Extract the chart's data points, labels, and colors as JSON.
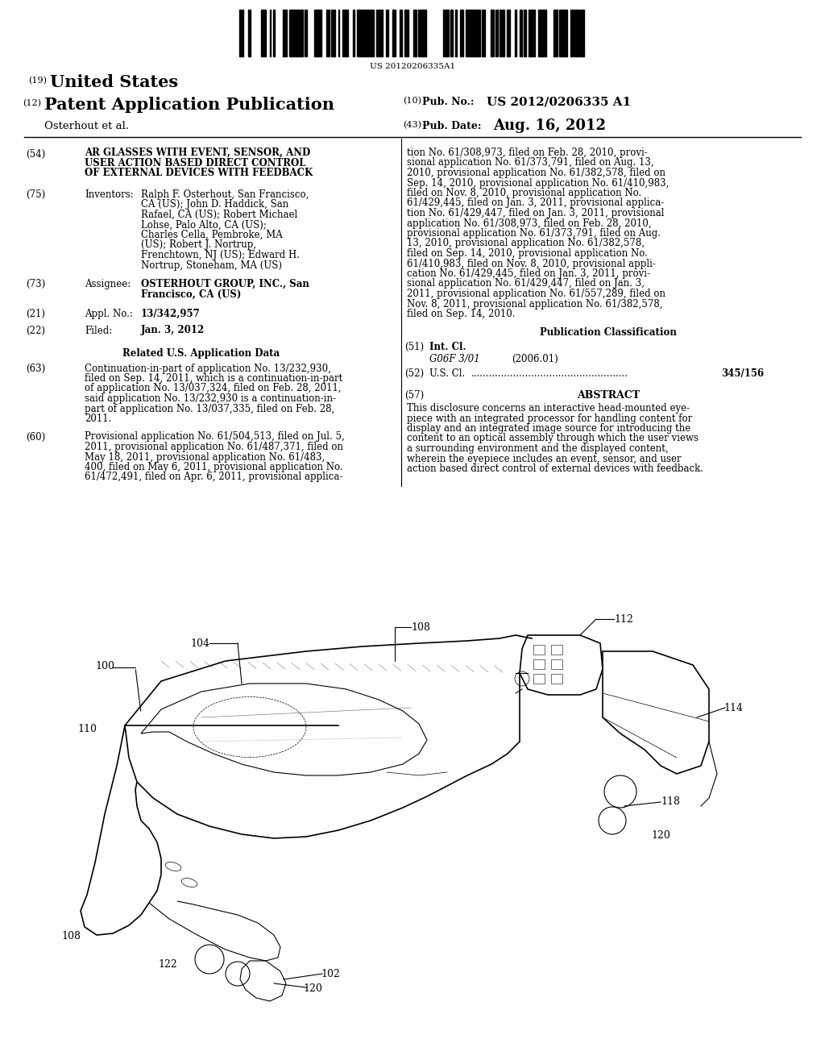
{
  "background_color": "#ffffff",
  "barcode_text": "US 20120206335A1",
  "field54_title_line1": "AR GLASSES WITH EVENT, SENSOR, AND",
  "field54_title_line2": "USER ACTION BASED DIRECT CONTROL",
  "field54_title_line3": "OF EXTERNAL DEVICES WITH FEEDBACK",
  "inventors_bold": [
    "Ralph F. Osterhout",
    "John D. Haddick",
    "Robert Michael",
    "Lohse",
    "Charles Cella",
    "Robert J. Nortrup,",
    "Edward H.",
    "Nortrup"
  ],
  "field75_value_lines": [
    "Ralph F. Osterhout, San Francisco,",
    "CA (US); John D. Haddick, San",
    "Rafael, CA (US); Robert Michael",
    "Lohse, Palo Alto, CA (US);",
    "Charles Cella, Pembroke, MA",
    "(US); Robert J. Nortrup,",
    "Frenchtown, NJ (US); Edward H.",
    "Nortrup, Stoneham, MA (US)"
  ],
  "field73_value_lines": [
    "OSTERHOUT GROUP, INC., San",
    "Francisco, CA (US)"
  ],
  "field21_value": "13/342,957",
  "field22_value": "Jan. 3, 2012",
  "field63_value_lines": [
    "Continuation-in-part of application No. 13/232,930,",
    "filed on Sep. 14, 2011, which is a continuation-in-part",
    "of application No. 13/037,324, filed on Feb. 28, 2011,",
    "said application No. 13/232,930 is a continuation-in-",
    "part of application No. 13/037,335, filed on Feb. 28,",
    "2011."
  ],
  "field60_value_lines": [
    "Provisional application No. 61/504,513, filed on Jul. 5,",
    "2011, provisional application No. 61/487,371, filed on",
    "May 18, 2011, provisional application No. 61/483,",
    "400, filed on May 6, 2011, provisional application No.",
    "61/472,491, filed on Apr. 6, 2011, provisional applica-"
  ],
  "right_col_lines": [
    "tion No. 61/308,973, filed on Feb. 28, 2010, provi-",
    "sional application No. 61/373,791, filed on Aug. 13,",
    "2010, provisional application No. 61/382,578, filed on",
    "Sep. 14, 2010, provisional application No. 61/410,983,",
    "filed on Nov. 8, 2010, provisional application No.",
    "61/429,445, filed on Jan. 3, 2011, provisional applica-",
    "tion No. 61/429,447, filed on Jan. 3, 2011, provisional",
    "application No. 61/308,973, filed on Feb. 28, 2010,",
    "provisional application No. 61/373,791, filed on Aug.",
    "13, 2010, provisional application No. 61/382,578,",
    "filed on Sep. 14, 2010, provisional application No.",
    "61/410,983, filed on Nov. 8, 2010, provisional appli-",
    "cation No. 61/429,445, filed on Jan. 3, 2011, provi-",
    "sional application No. 61/429,447, filed on Jan. 3,",
    "2011, provisional application No. 61/557,289, filed on",
    "Nov. 8, 2011, provisional application No. 61/382,578,",
    "filed on Sep. 14, 2010."
  ],
  "field51_value": "G06F 3/01",
  "field51_year": "(2006.01)",
  "field52_value": "345/156",
  "abstract_lines": [
    "This disclosure concerns an interactive head-mounted eye-",
    "piece with an integrated processor for handling content for",
    "display and an integrated image source for introducing the",
    "content to an optical assembly through which the user views",
    "a surrounding environment and the displayed content,",
    "wherein the eyepiece includes an event, sensor, and user",
    "action based direct control of external devices with feedback."
  ]
}
